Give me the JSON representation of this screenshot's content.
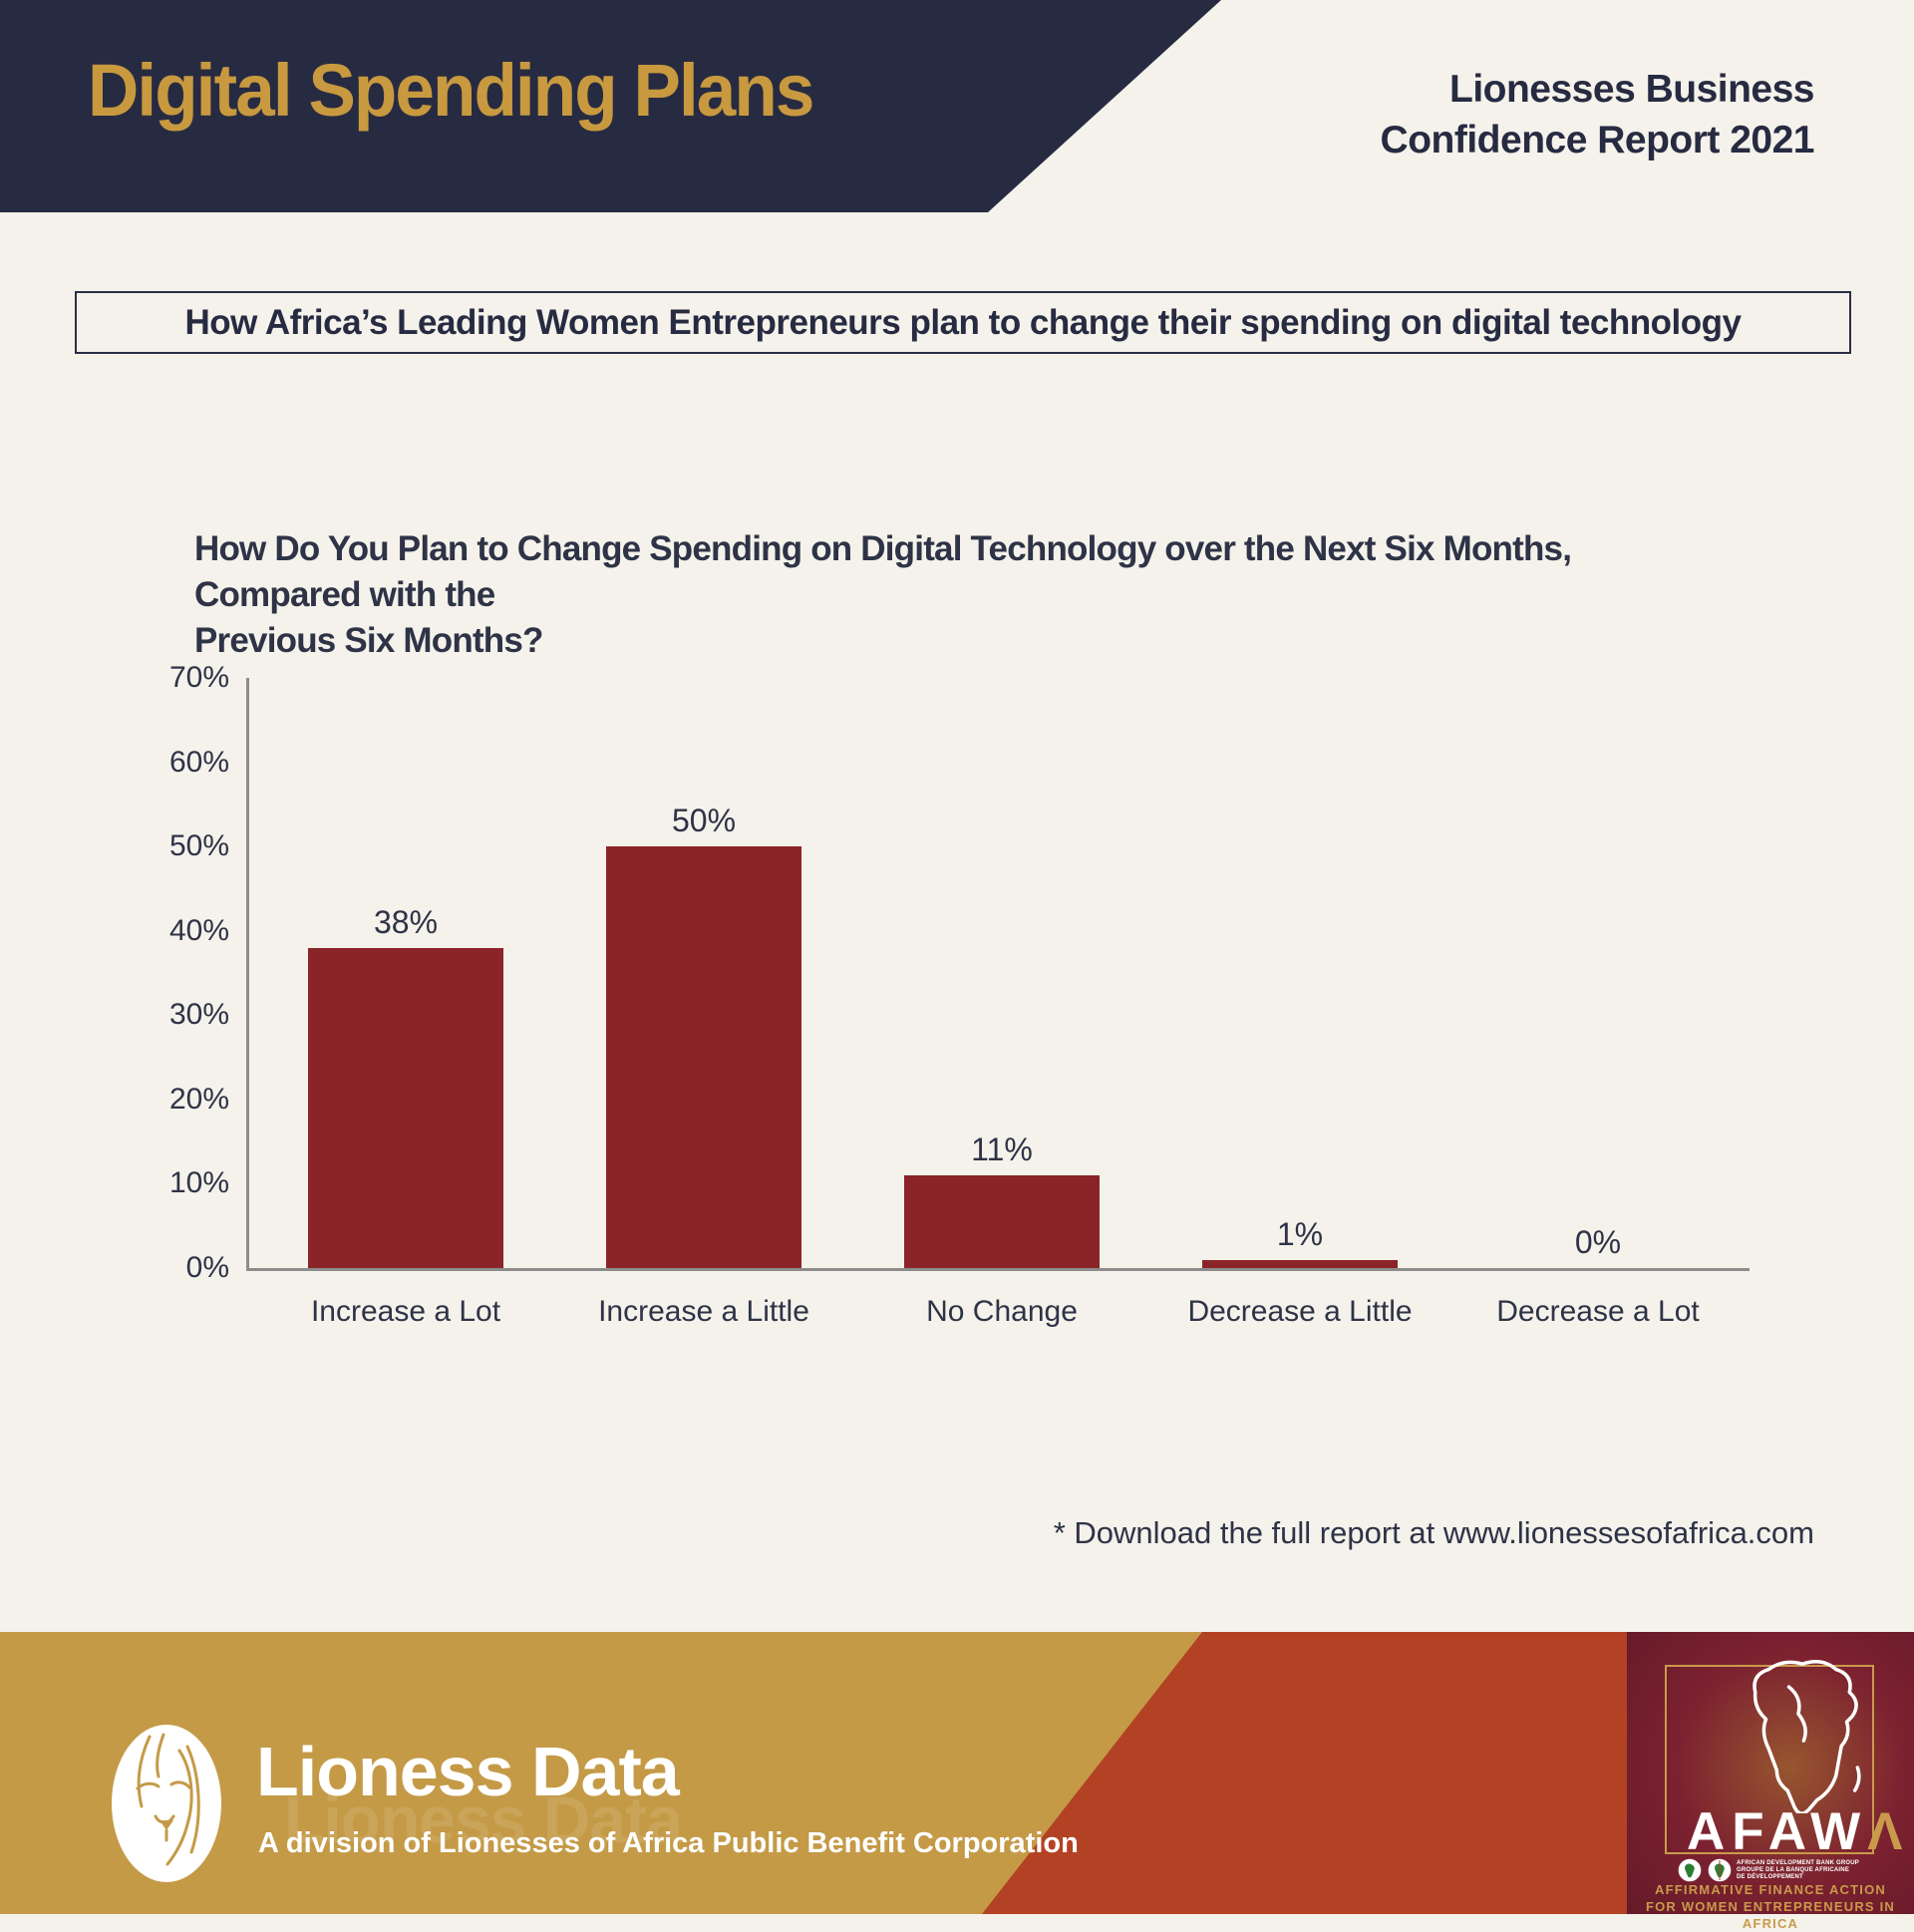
{
  "header": {
    "title": "Digital Spending Plans",
    "report_line1": "Lionesses Business",
    "report_line2": "Confidence Report 2021"
  },
  "subtitle": "How Africa’s Leading Women Entrepreneurs plan to change their spending on digital technology",
  "chart_data": {
    "type": "bar",
    "title": "How Do You Plan to Change Spending on Digital Technology over the Next Six Months, Compared with the Previous Six Months?",
    "title_line1": "How Do You Plan to Change Spending on Digital Technology over the Next Six Months, Compared with the",
    "title_line2": "Previous Six Months?",
    "categories": [
      "Increase a Lot",
      "Increase a Little",
      "No Change",
      "Decrease a Little",
      "Decrease a Lot"
    ],
    "values": [
      38,
      50,
      11,
      1,
      0
    ],
    "value_labels": [
      "38%",
      "50%",
      "11%",
      "1%",
      "0%"
    ],
    "y_ticks": [
      "0%",
      "10%",
      "20%",
      "30%",
      "40%",
      "50%",
      "60%",
      "70%"
    ],
    "ylim": [
      0,
      70
    ],
    "xlabel": "",
    "ylabel": "",
    "grid": false,
    "legend_position": "none",
    "bar_color": "#8B2428",
    "axis_color": "#8C8C8C"
  },
  "note": "* Download the full report at www.lionessesofafrica.com",
  "footer": {
    "brand": "Lioness Data",
    "brand_sub": "A division of Lionesses of Africa Public Benefit Corporation",
    "afawa": {
      "wordmark_white": "AFAW",
      "wordmark_gold": "Λ",
      "bank_line1": "AFRICAN DEVELOPMENT BANK GROUP",
      "bank_line2": "GROUPE DE LA BANQUE AFRICAINE",
      "bank_line3": "DE DÉVELOPPEMENT",
      "tagline_line1": "AFFIRMATIVE FINANCE ACTION",
      "tagline_line2": "FOR WOMEN ENTREPRENEURS IN AFRICA"
    }
  },
  "colors": {
    "background_cream": "#F4F2EA",
    "header_navy": "#272B42",
    "title_gold": "#C8993F",
    "bar_maroon": "#8B2428",
    "footer_gold": "#C49A47",
    "footer_rust": "#B34124",
    "afawa_maroon": "#7C2130",
    "afawa_gold": "#C99A4B"
  }
}
